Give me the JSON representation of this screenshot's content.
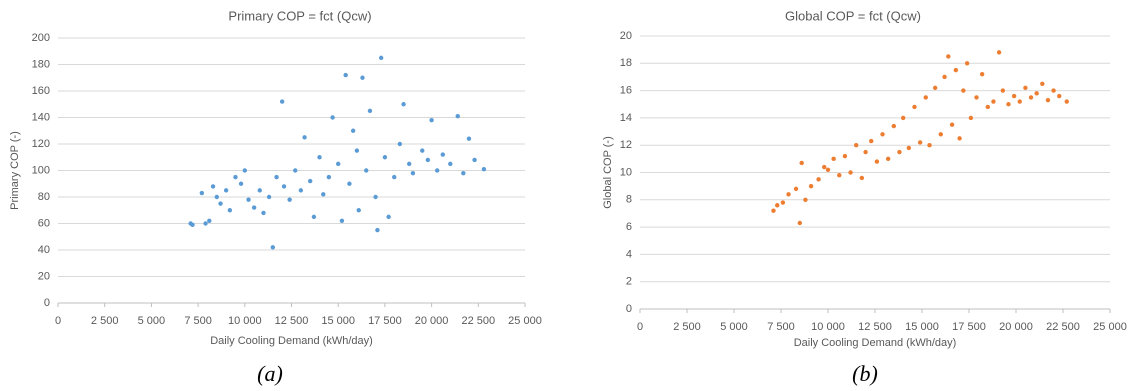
{
  "chart_data": [
    {
      "type": "scatter",
      "title": "Primary COP = fct (Qcw)",
      "x_label": "Daily Cooling Demand (kWh/day)",
      "y_label": "Primary COP (-)",
      "caption": "(a)",
      "color": "#5b9bd5",
      "grid": true,
      "xlim": [
        0,
        25000
      ],
      "ylim": [
        0,
        200
      ],
      "xticks": [
        0,
        {
          "value": 2500,
          "label": "2 500"
        },
        {
          "value": 5000,
          "label": "5 000"
        },
        {
          "value": 7500,
          "label": "7 500"
        },
        {
          "value": 10000,
          "label": "10 000"
        },
        {
          "value": 12500,
          "label": "12 500"
        },
        {
          "value": 15000,
          "label": "15 000"
        },
        {
          "value": 17500,
          "label": "17 500"
        },
        {
          "value": 20000,
          "label": "20 000"
        },
        {
          "value": 22500,
          "label": "22 500"
        },
        {
          "value": 25000,
          "label": "25 000"
        }
      ],
      "yticks": [
        0,
        20,
        40,
        60,
        80,
        100,
        120,
        140,
        160,
        180,
        200
      ],
      "x": [
        7100,
        7200,
        7700,
        7900,
        8100,
        8300,
        8500,
        8700,
        9000,
        9200,
        9500,
        9800,
        10000,
        10200,
        10500,
        10800,
        11000,
        11300,
        11500,
        11700,
        12000,
        12100,
        12400,
        12700,
        13000,
        13200,
        13500,
        13700,
        14000,
        14200,
        14500,
        14700,
        15000,
        15200,
        15400,
        15600,
        15800,
        16000,
        16100,
        16300,
        16500,
        16700,
        17000,
        17100,
        17300,
        17500,
        17700,
        18000,
        18300,
        18500,
        18800,
        19000,
        19500,
        19800,
        20000,
        20300,
        20600,
        21000,
        21400,
        21700,
        22000,
        22300,
        22800
      ],
      "values": [
        60,
        59,
        83,
        60,
        62,
        88,
        80,
        75,
        85,
        70,
        95,
        90,
        100,
        78,
        72,
        85,
        68,
        80,
        42,
        95,
        152,
        88,
        78,
        100,
        85,
        125,
        92,
        65,
        110,
        82,
        95,
        140,
        105,
        62,
        172,
        90,
        130,
        115,
        70,
        170,
        100,
        145,
        80,
        55,
        185,
        110,
        65,
        95,
        120,
        150,
        105,
        98,
        115,
        108,
        138,
        100,
        112,
        105,
        141,
        98,
        124,
        108,
        101
      ]
    },
    {
      "type": "scatter",
      "title": "Global COP = fct (Qcw)",
      "x_label": "Daily Cooling Demand (kWh/day)",
      "y_label": "Global COP (-)",
      "caption": "(b)",
      "color": "#ed7d31",
      "grid": true,
      "xlim": [
        0,
        25000
      ],
      "ylim": [
        0,
        20
      ],
      "xticks": [
        0,
        {
          "value": 2500,
          "label": "2 500"
        },
        {
          "value": 5000,
          "label": "5 000"
        },
        {
          "value": 7500,
          "label": "7 500"
        },
        {
          "value": 10000,
          "label": "10 000"
        },
        {
          "value": 12500,
          "label": "12 500"
        },
        {
          "value": 15000,
          "label": "15 000"
        },
        {
          "value": 17500,
          "label": "17 500"
        },
        {
          "value": 20000,
          "label": "20 000"
        },
        {
          "value": 22500,
          "label": "22 500"
        },
        {
          "value": 25000,
          "label": "25 000"
        }
      ],
      "yticks": [
        0,
        2,
        4,
        6,
        8,
        10,
        12,
        14,
        16,
        18,
        20
      ],
      "x": [
        7100,
        7300,
        7600,
        7900,
        8300,
        8500,
        8600,
        8800,
        9100,
        9500,
        9800,
        10000,
        10300,
        10600,
        10900,
        11200,
        11500,
        11800,
        12000,
        12300,
        12600,
        12900,
        13200,
        13500,
        13800,
        14000,
        14300,
        14600,
        14900,
        15200,
        15400,
        15700,
        16000,
        16200,
        16400,
        16600,
        16800,
        17000,
        17200,
        17400,
        17600,
        17900,
        18200,
        18500,
        18800,
        19100,
        19300,
        19600,
        19900,
        20200,
        20500,
        20800,
        21100,
        21400,
        21700,
        22000,
        22300,
        22700
      ],
      "values": [
        7.2,
        7.6,
        7.8,
        8.4,
        8.8,
        6.3,
        10.7,
        8.0,
        9.0,
        9.5,
        10.4,
        10.2,
        11.0,
        9.8,
        11.2,
        10.0,
        12.0,
        9.6,
        11.5,
        12.3,
        10.8,
        12.8,
        11.0,
        13.4,
        11.5,
        14.0,
        11.8,
        14.8,
        12.2,
        15.5,
        12.0,
        16.2,
        12.8,
        17.0,
        18.5,
        13.5,
        17.5,
        12.5,
        16.0,
        18.0,
        14.0,
        15.5,
        17.2,
        14.8,
        15.2,
        18.8,
        16.0,
        15.0,
        15.6,
        15.2,
        16.2,
        15.5,
        15.8,
        16.5,
        15.3,
        16.0,
        15.6,
        15.2
      ]
    }
  ]
}
